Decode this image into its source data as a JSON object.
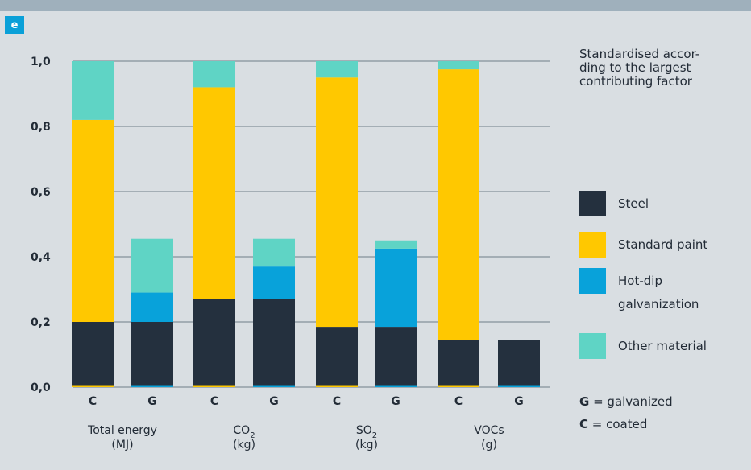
{
  "panel_label": "e",
  "note_lines": [
    "Standardised accor-",
    "ding to the largest",
    "contributing factor"
  ],
  "legend_label_lines": {
    "steel": [
      "Steel"
    ],
    "standard_paint": [
      "Standard paint"
    ],
    "hot_dip": [
      "Hot-dip",
      "galvanization"
    ],
    "other": [
      "Other material"
    ]
  },
  "key": {
    "g_letter": "G",
    "g_text": " = galvanized",
    "c_letter": "C",
    "c_text": " = coated"
  },
  "colors": {
    "background": "#d9dee2",
    "steel": "#24303e",
    "standard_paint": "#ffc800",
    "hot_dip": "#08a2da",
    "other": "#5fd4c5",
    "grid": "#6f7e88"
  },
  "chart_data": {
    "type": "bar",
    "stacked": true,
    "ylim": [
      0,
      1.0
    ],
    "yticks": [
      "0,0",
      "0,2",
      "0,4",
      "0,6",
      "0,8",
      "1,0"
    ],
    "grid": true,
    "legend_position": "right",
    "groups": [
      {
        "label_lines": [
          "Total energy",
          "(MJ)"
        ]
      },
      {
        "label_lines": [
          "CO2",
          "(kg)"
        ]
      },
      {
        "label_lines": [
          "SO2",
          "(kg)"
        ]
      },
      {
        "label_lines": [
          "VOCs",
          "(g)"
        ]
      }
    ],
    "categories": [
      "C",
      "G",
      "C",
      "G",
      "C",
      "G",
      "C",
      "G"
    ],
    "series": [
      {
        "key": "steel",
        "name": "Steel",
        "values": [
          0.2,
          0.2,
          0.27,
          0.27,
          0.185,
          0.185,
          0.145,
          0.145
        ]
      },
      {
        "key": "standard_paint",
        "name": "Standard paint",
        "values": [
          0.62,
          0.0,
          0.65,
          0.0,
          0.765,
          0.0,
          0.83,
          0.0
        ]
      },
      {
        "key": "hot_dip",
        "name": "Hot-dip galvanization",
        "values": [
          0.0,
          0.09,
          0.0,
          0.1,
          0.0,
          0.24,
          0.0,
          0.0
        ]
      },
      {
        "key": "other",
        "name": "Other material",
        "values": [
          0.18,
          0.165,
          0.08,
          0.085,
          0.05,
          0.025,
          0.025,
          0.0
        ]
      }
    ]
  }
}
